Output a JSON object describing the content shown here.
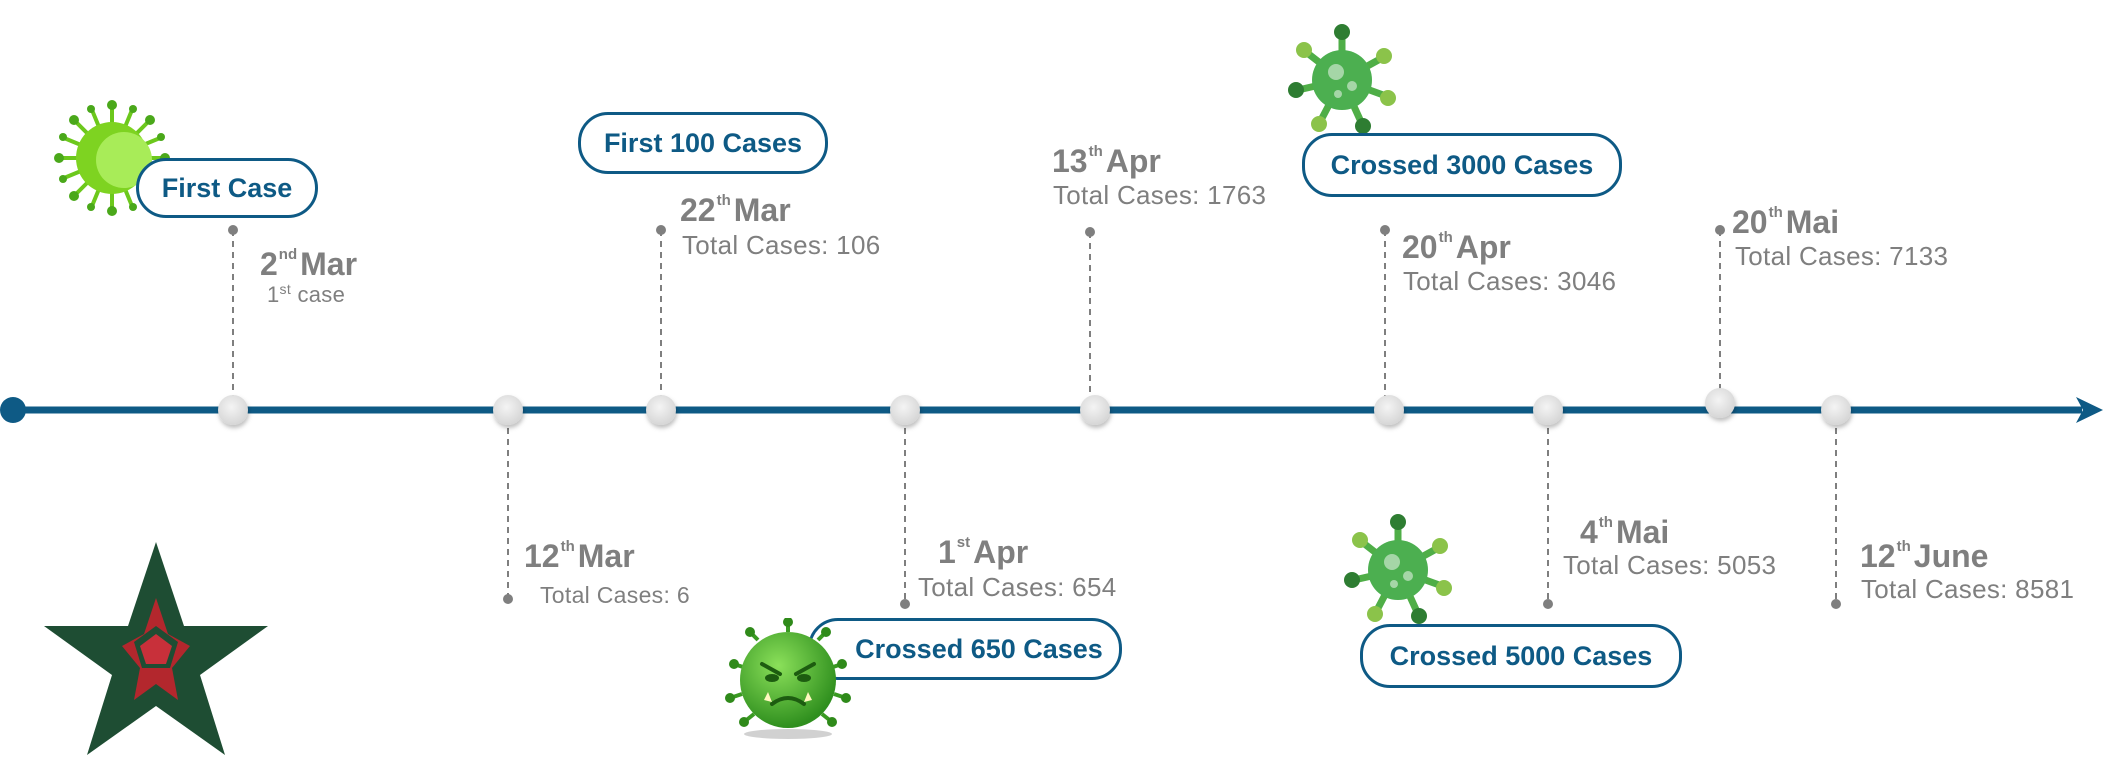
{
  "colors": {
    "axis": "#0e5a85",
    "pill_border": "#0e5a85",
    "pill_text": "#0e5a85",
    "date_text": "#7f7f7f",
    "marker": "#e3e3e3",
    "connector": "#7f7f7f",
    "star_fill": "#1e4d33",
    "star_center": "#b3272d",
    "virus_green": "#5cb85c",
    "virus_lime": "#7ed321"
  },
  "icons": [
    "virus-icon",
    "angry-virus-icon",
    "star-emblem-icon"
  ],
  "events": [
    {
      "id": "e1",
      "day": "2",
      "suffix": "nd",
      "month": "Mar",
      "note_num": "1",
      "note_suffix": "st",
      "note_text": "case"
    },
    {
      "id": "e2",
      "day": "12",
      "suffix": "th",
      "month": "Mar",
      "total": "Total Cases: 6"
    },
    {
      "id": "e3",
      "day": "22",
      "suffix": "th",
      "month": "Mar",
      "total": "Total Cases: 106"
    },
    {
      "id": "e4",
      "day": "1",
      "suffix": "st",
      "month": "Apr",
      "total": "Total Cases: 654"
    },
    {
      "id": "e5",
      "day": "13",
      "suffix": "th",
      "month": "Apr",
      "total": "Total Cases: 1763"
    },
    {
      "id": "e6",
      "day": "20",
      "suffix": "th",
      "month": "Apr",
      "total": "Total Cases: 3046"
    },
    {
      "id": "e7",
      "day": "4",
      "suffix": "th",
      "month": "Mai",
      "total": "Total Cases: 5053"
    },
    {
      "id": "e8",
      "day": "20",
      "suffix": "th",
      "month": "Mai",
      "total": "Total Cases: 7133"
    },
    {
      "id": "e9",
      "day": "12",
      "suffix": "th",
      "month": "June",
      "total": "Total Cases: 8581"
    }
  ],
  "milestones": {
    "first_case": "First Case",
    "first_100": "First 100 Cases",
    "crossed_650": "Crossed 650 Cases",
    "crossed_3000": "Crossed 3000 Cases",
    "crossed_5000": "Crossed 5000 Cases"
  }
}
